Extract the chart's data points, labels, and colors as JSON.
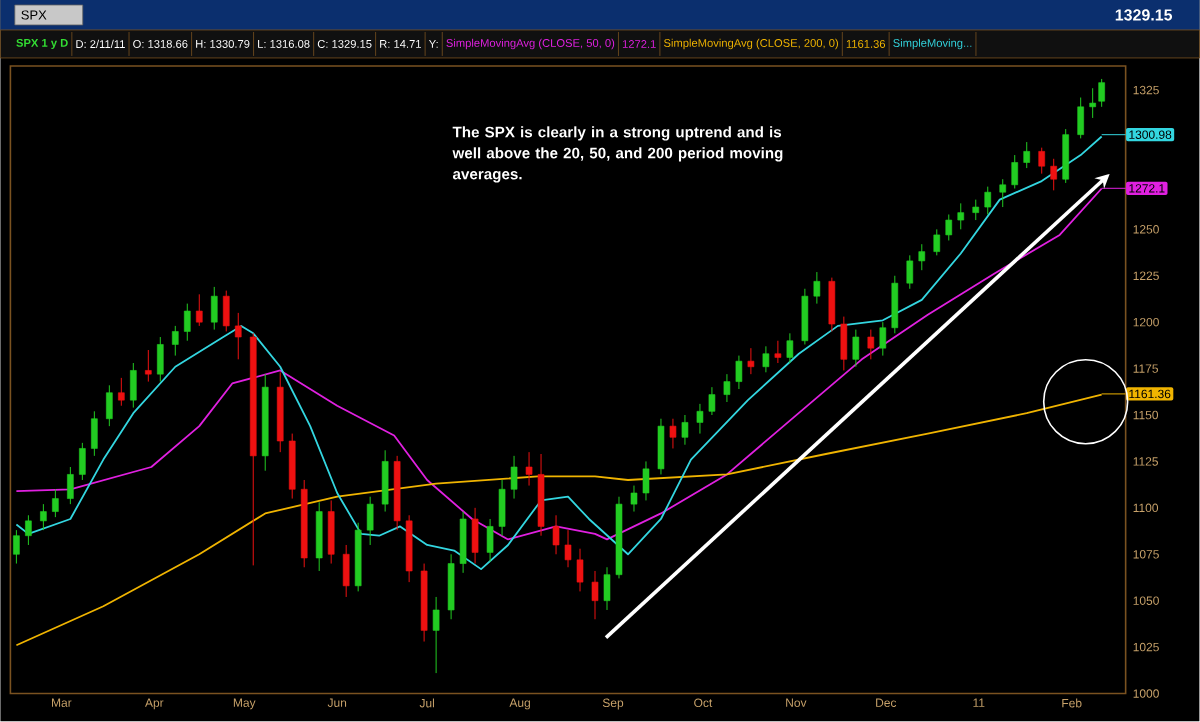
{
  "chart_data": {
    "type": "candlestick",
    "title": "SPX",
    "x": [
      "2010-02-14",
      "2010-02-18",
      "2010-02-23",
      "2010-02-27",
      "2010-03-04",
      "2010-03-08",
      "2010-03-12",
      "2010-03-17",
      "2010-03-21",
      "2010-03-25",
      "2010-03-30",
      "2010-04-03",
      "2010-04-08",
      "2010-04-12",
      "2010-04-16",
      "2010-04-21",
      "2010-04-25",
      "2010-04-29",
      "2010-05-04",
      "2010-05-08",
      "2010-05-13",
      "2010-05-17",
      "2010-05-21",
      "2010-05-26",
      "2010-05-30",
      "2010-06-04",
      "2010-06-08",
      "2010-06-12",
      "2010-06-17",
      "2010-06-21",
      "2010-06-25",
      "2010-06-30",
      "2010-07-04",
      "2010-07-09",
      "2010-07-13",
      "2010-07-17",
      "2010-07-22",
      "2010-07-26",
      "2010-07-30",
      "2010-08-04",
      "2010-08-08",
      "2010-08-13",
      "2010-08-17",
      "2010-08-21",
      "2010-08-26",
      "2010-08-30",
      "2010-09-03",
      "2010-09-08",
      "2010-09-12",
      "2010-09-17",
      "2010-09-21",
      "2010-09-25",
      "2010-09-30",
      "2010-10-04",
      "2010-10-09",
      "2010-10-13",
      "2010-10-17",
      "2010-10-22",
      "2010-10-26",
      "2010-10-30",
      "2010-11-04",
      "2010-11-08",
      "2010-11-13",
      "2010-11-17",
      "2010-11-21",
      "2010-11-26",
      "2010-11-30",
      "2010-12-04",
      "2010-12-09",
      "2010-12-13",
      "2010-12-18",
      "2010-12-22",
      "2010-12-26",
      "2010-12-31",
      "2011-01-04",
      "2011-01-09",
      "2011-01-13",
      "2011-01-17",
      "2011-01-22",
      "2011-01-26",
      "2011-01-30",
      "2011-02-04",
      "2011-02-08",
      "2011-02-11"
    ],
    "ohlc": [
      [
        1075,
        1088,
        1070,
        1085
      ],
      [
        1085,
        1096,
        1080,
        1093
      ],
      [
        1093,
        1102,
        1088,
        1098
      ],
      [
        1098,
        1110,
        1095,
        1105
      ],
      [
        1105,
        1122,
        1102,
        1118
      ],
      [
        1118,
        1135,
        1115,
        1132
      ],
      [
        1132,
        1152,
        1128,
        1148
      ],
      [
        1148,
        1166,
        1144,
        1162
      ],
      [
        1162,
        1170,
        1155,
        1158
      ],
      [
        1158,
        1178,
        1154,
        1174
      ],
      [
        1174,
        1185,
        1168,
        1172
      ],
      [
        1172,
        1192,
        1168,
        1188
      ],
      [
        1188,
        1198,
        1182,
        1195
      ],
      [
        1195,
        1210,
        1190,
        1206
      ],
      [
        1206,
        1215,
        1198,
        1200
      ],
      [
        1200,
        1219,
        1196,
        1214
      ],
      [
        1214,
        1217,
        1195,
        1198
      ],
      [
        1198,
        1205,
        1180,
        1192
      ],
      [
        1192,
        1194,
        1069,
        1128
      ],
      [
        1128,
        1172,
        1120,
        1165
      ],
      [
        1165,
        1173,
        1130,
        1136
      ],
      [
        1136,
        1140,
        1105,
        1110
      ],
      [
        1110,
        1115,
        1068,
        1073
      ],
      [
        1073,
        1103,
        1066,
        1098
      ],
      [
        1098,
        1104,
        1070,
        1075
      ],
      [
        1075,
        1080,
        1052,
        1058
      ],
      [
        1058,
        1092,
        1055,
        1088
      ],
      [
        1088,
        1106,
        1080,
        1102
      ],
      [
        1102,
        1131,
        1098,
        1125
      ],
      [
        1125,
        1128,
        1088,
        1093
      ],
      [
        1093,
        1096,
        1060,
        1066
      ],
      [
        1066,
        1070,
        1028,
        1034
      ],
      [
        1034,
        1052,
        1011,
        1045
      ],
      [
        1045,
        1075,
        1040,
        1070
      ],
      [
        1070,
        1098,
        1065,
        1094
      ],
      [
        1094,
        1100,
        1070,
        1076
      ],
      [
        1076,
        1094,
        1071,
        1090
      ],
      [
        1090,
        1115,
        1085,
        1110
      ],
      [
        1110,
        1128,
        1105,
        1122
      ],
      [
        1122,
        1130,
        1112,
        1118
      ],
      [
        1118,
        1129,
        1085,
        1090
      ],
      [
        1090,
        1096,
        1075,
        1080
      ],
      [
        1080,
        1088,
        1068,
        1072
      ],
      [
        1072,
        1078,
        1055,
        1060
      ],
      [
        1060,
        1066,
        1040,
        1050
      ],
      [
        1050,
        1068,
        1045,
        1064
      ],
      [
        1064,
        1106,
        1062,
        1102
      ],
      [
        1102,
        1112,
        1098,
        1108
      ],
      [
        1108,
        1125,
        1104,
        1121
      ],
      [
        1121,
        1148,
        1118,
        1144
      ],
      [
        1144,
        1148,
        1132,
        1138
      ],
      [
        1138,
        1150,
        1134,
        1146
      ],
      [
        1146,
        1156,
        1140,
        1152
      ],
      [
        1152,
        1165,
        1150,
        1161
      ],
      [
        1161,
        1172,
        1157,
        1168
      ],
      [
        1168,
        1182,
        1164,
        1179
      ],
      [
        1179,
        1186,
        1172,
        1176
      ],
      [
        1176,
        1187,
        1173,
        1183
      ],
      [
        1183,
        1190,
        1178,
        1181
      ],
      [
        1181,
        1194,
        1178,
        1190
      ],
      [
        1190,
        1218,
        1188,
        1214
      ],
      [
        1214,
        1227,
        1210,
        1222
      ],
      [
        1222,
        1224,
        1195,
        1199
      ],
      [
        1199,
        1203,
        1174,
        1180
      ],
      [
        1180,
        1196,
        1176,
        1192
      ],
      [
        1192,
        1196,
        1180,
        1186
      ],
      [
        1186,
        1200,
        1182,
        1197
      ],
      [
        1197,
        1225,
        1194,
        1221
      ],
      [
        1221,
        1236,
        1218,
        1233
      ],
      [
        1233,
        1242,
        1228,
        1238
      ],
      [
        1238,
        1250,
        1236,
        1247
      ],
      [
        1247,
        1258,
        1244,
        1255
      ],
      [
        1255,
        1264,
        1250,
        1259
      ],
      [
        1259,
        1266,
        1255,
        1262
      ],
      [
        1262,
        1273,
        1258,
        1270
      ],
      [
        1270,
        1277,
        1262,
        1274
      ],
      [
        1274,
        1290,
        1272,
        1286
      ],
      [
        1286,
        1297,
        1283,
        1292
      ],
      [
        1292,
        1294,
        1280,
        1284
      ],
      [
        1284,
        1288,
        1271,
        1277
      ],
      [
        1277,
        1304,
        1275,
        1301
      ],
      [
        1301,
        1321,
        1299,
        1316
      ],
      [
        1316,
        1326,
        1310,
        1318
      ],
      [
        1319,
        1331,
        1316,
        1329
      ]
    ],
    "series": [
      {
        "name": "SimpleMovingAvg (CLOSE, 50, 0)",
        "type": "line",
        "color": "#e020e0",
        "x": [
          "2010-02-14",
          "2010-03-04",
          "2010-03-31",
          "2010-04-16",
          "2010-04-27",
          "2010-05-13",
          "2010-06-01",
          "2010-06-20",
          "2010-07-01",
          "2010-07-16",
          "2010-07-28",
          "2010-08-13",
          "2010-08-26",
          "2010-08-30",
          "2010-09-17",
          "2010-10-09",
          "2010-10-30",
          "2010-11-23",
          "2010-12-15",
          "2011-01-06",
          "2011-01-28",
          "2011-02-11"
        ],
        "values": [
          1109,
          1110,
          1122,
          1144,
          1167,
          1174,
          1155,
          1139,
          1115,
          1094,
          1083,
          1090,
          1086,
          1083,
          1097,
          1118,
          1147,
          1180,
          1204,
          1226,
          1247,
          1272
        ]
      },
      {
        "name": "SimpleMovingAvg (CLOSE, 200, 0)",
        "type": "line",
        "color": "#f0b400",
        "x": [
          "2010-02-14",
          "2010-03-15",
          "2010-04-16",
          "2010-05-08",
          "2010-06-01",
          "2010-07-04",
          "2010-08-07",
          "2010-08-26",
          "2010-09-06",
          "2010-10-09",
          "2010-11-11",
          "2010-12-15",
          "2011-01-17",
          "2011-02-11"
        ],
        "values": [
          1026,
          1047,
          1075,
          1097,
          1106,
          1113,
          1117,
          1117,
          1115,
          1118,
          1129,
          1140,
          1151,
          1161
        ]
      },
      {
        "name": "SimpleMoving...",
        "type": "line",
        "color": "#33d6e0",
        "x": [
          "2010-02-14",
          "2010-02-18",
          "2010-03-04",
          "2010-03-15",
          "2010-03-25",
          "2010-04-08",
          "2010-04-24",
          "2010-04-30",
          "2010-05-04",
          "2010-05-13",
          "2010-05-23",
          "2010-06-01",
          "2010-06-09",
          "2010-06-15",
          "2010-06-22",
          "2010-07-01",
          "2010-07-10",
          "2010-07-19",
          "2010-07-28",
          "2010-08-08",
          "2010-08-17",
          "2010-08-24",
          "2010-09-06",
          "2010-09-17",
          "2010-09-27",
          "2010-10-16",
          "2010-11-02",
          "2010-11-15",
          "2010-11-30",
          "2010-12-13",
          "2010-12-26",
          "2011-01-08",
          "2011-01-22",
          "2011-02-04",
          "2011-02-11"
        ],
        "values": [
          1091,
          1086,
          1094,
          1126,
          1151,
          1176,
          1192,
          1198,
          1194,
          1176,
          1144,
          1108,
          1086,
          1085,
          1090,
          1080,
          1077,
          1067,
          1080,
          1104,
          1106,
          1094,
          1075,
          1094,
          1126,
          1158,
          1183,
          1198,
          1201,
          1212,
          1237,
          1266,
          1276,
          1290,
          1300
        ]
      }
    ],
    "xlim": [
      "2010-02-12",
      "2011-02-19"
    ],
    "xticks": [
      {
        "value": "2010-03-01",
        "label": "Mar"
      },
      {
        "value": "2010-04-01",
        "label": "Apr"
      },
      {
        "value": "2010-05-01",
        "label": "May"
      },
      {
        "value": "2010-06-01",
        "label": "Jun"
      },
      {
        "value": "2010-07-01",
        "label": "Jul"
      },
      {
        "value": "2010-08-01",
        "label": "Aug"
      },
      {
        "value": "2010-09-01",
        "label": "Sep"
      },
      {
        "value": "2010-10-01",
        "label": "Oct"
      },
      {
        "value": "2010-11-01",
        "label": "Nov"
      },
      {
        "value": "2010-12-01",
        "label": "Dec"
      },
      {
        "value": "2011-01-01",
        "label": "11"
      },
      {
        "value": "2011-02-01",
        "label": "Feb"
      }
    ],
    "ylim": [
      1000,
      1338
    ],
    "yticks": [
      1000,
      1025,
      1050,
      1075,
      1100,
      1125,
      1150,
      1175,
      1200,
      1225,
      1250,
      1325
    ],
    "legend": "top",
    "annotations": [
      "The SPX is clearly in a strong uptrend and is well above the 20, 50, and 200 period moving averages.",
      "SPX 1 y D",
      "D: 2/11/11",
      "O: 1318.66",
      "H: 1330.79",
      "L: 1316.08",
      "C: 1329.15",
      "R: 14.71",
      "Y:",
      "1272.1",
      "1161.36",
      "1329.15",
      {
        "text": "1272.1",
        "x": "2011-02-11",
        "y": 1272.1
      },
      {
        "text": "1161.36",
        "x": "2011-02-11",
        "y": 1161.36
      },
      {
        "text": "1300.98",
        "x": "2011-02-11",
        "y": 1300.98
      }
    ]
  }
}
